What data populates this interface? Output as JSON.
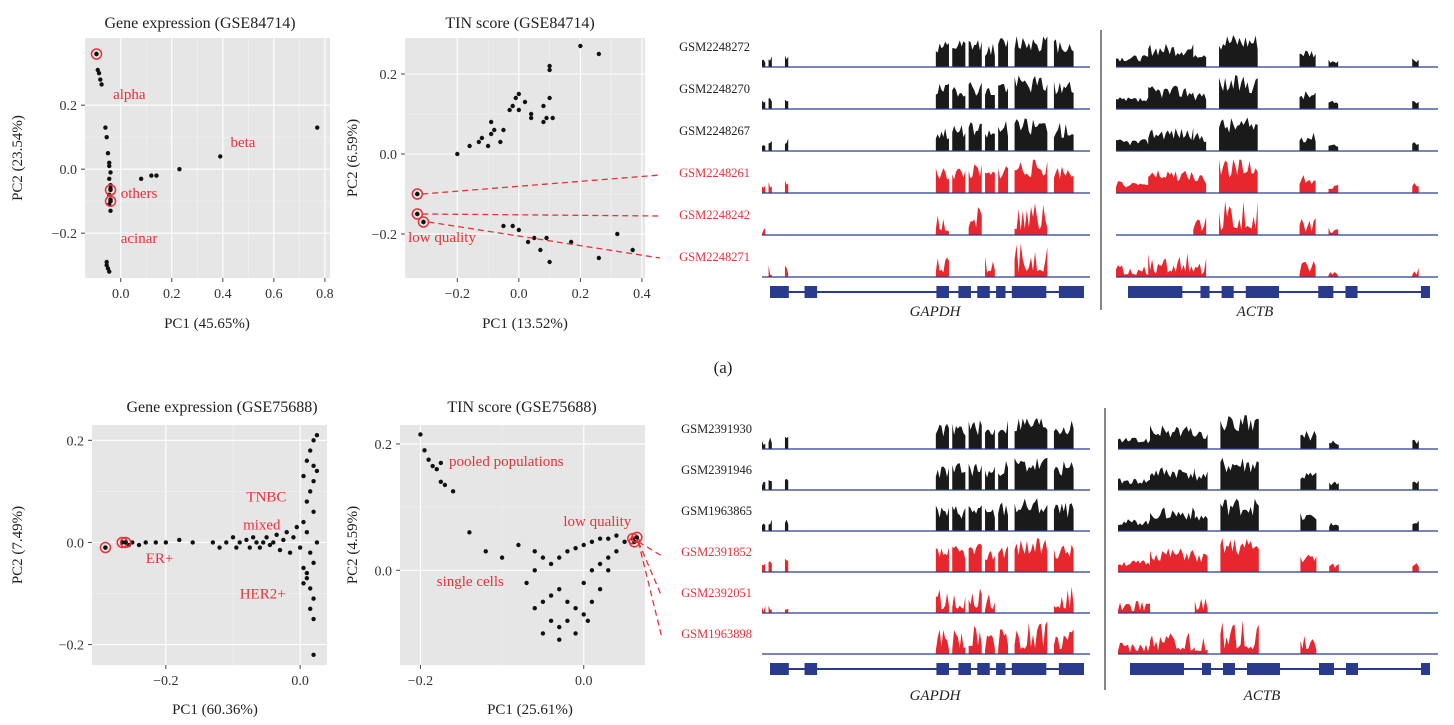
{
  "figure": {
    "panel_label_a": "(a)"
  },
  "colors": {
    "panel_bg": "#e6e6e6",
    "grid": "#ffffff",
    "point": "#111111",
    "highlight": "#e8313a",
    "track_black": "#1a1a1a",
    "track_red": "#e8262e",
    "gene_model": "#2a3a8c"
  },
  "chart_data": [
    {
      "id": "a1",
      "type": "scatter",
      "title": "Gene expression (GSE84714)",
      "xlabel": "PC1 (45.65%)",
      "ylabel": "PC2 (23.54%)",
      "xlim": [
        -0.14,
        0.82
      ],
      "ylim": [
        -0.34,
        0.41
      ],
      "xticks": [
        0.0,
        0.2,
        0.4,
        0.6,
        0.8
      ],
      "xtick_labels": [
        "0.0",
        "0.2",
        "0.4",
        "0.6",
        "0.8"
      ],
      "yticks": [
        -0.2,
        0.0,
        0.2
      ],
      "ytick_labels": [
        "−0.2",
        "0.0",
        "0.2"
      ],
      "annotations": [
        {
          "text": "alpha",
          "x": -0.03,
          "y": 0.22
        },
        {
          "text": "beta",
          "x": 0.43,
          "y": 0.07
        },
        {
          "text": "others",
          "x": 0.0,
          "y": -0.09
        },
        {
          "text": "acinar",
          "x": 0.0,
          "y": -0.23
        }
      ],
      "points": [
        [
          -0.095,
          0.36
        ],
        [
          -0.09,
          0.31
        ],
        [
          -0.085,
          0.3
        ],
        [
          -0.08,
          0.28
        ],
        [
          -0.075,
          0.265
        ],
        [
          -0.06,
          0.13
        ],
        [
          -0.055,
          0.1
        ],
        [
          -0.05,
          0.05
        ],
        [
          -0.045,
          0.02
        ],
        [
          -0.045,
          0.01
        ],
        [
          -0.04,
          -0.01
        ],
        [
          -0.045,
          -0.03
        ],
        [
          -0.04,
          -0.05
        ],
        [
          -0.04,
          -0.06
        ],
        [
          -0.045,
          -0.08
        ],
        [
          -0.04,
          -0.095
        ],
        [
          -0.04,
          -0.1
        ],
        [
          -0.045,
          -0.11
        ],
        [
          -0.04,
          -0.13
        ],
        [
          -0.055,
          -0.29
        ],
        [
          -0.055,
          -0.3
        ],
        [
          -0.05,
          -0.31
        ],
        [
          -0.045,
          -0.32
        ],
        [
          0.08,
          -0.03
        ],
        [
          0.12,
          -0.02
        ],
        [
          0.14,
          -0.02
        ],
        [
          0.23,
          0.0
        ],
        [
          0.39,
          0.04
        ],
        [
          0.77,
          0.13
        ]
      ],
      "highlighted": [
        [
          -0.095,
          0.36
        ],
        [
          -0.04,
          -0.065
        ],
        [
          -0.04,
          -0.1
        ]
      ]
    },
    {
      "id": "a2",
      "type": "scatter",
      "title": "TIN score (GSE84714)",
      "xlabel": "PC1 (13.52%)",
      "ylabel": "PC2 (6.59%)",
      "xlim": [
        -0.37,
        0.41
      ],
      "ylim": [
        -0.31,
        0.29
      ],
      "xticks": [
        -0.2,
        0.0,
        0.2,
        0.4
      ],
      "xtick_labels": [
        "−0.2",
        "0.0",
        "0.2",
        "0.4"
      ],
      "yticks": [
        -0.2,
        0.0,
        0.2
      ],
      "ytick_labels": [
        "−0.2",
        "0.0",
        "0.2"
      ],
      "annotations": [
        {
          "text": "low quality",
          "x": -0.36,
          "y": -0.22
        }
      ],
      "points": [
        [
          -0.2,
          0.0
        ],
        [
          -0.16,
          0.02
        ],
        [
          -0.13,
          0.03
        ],
        [
          -0.12,
          0.04
        ],
        [
          -0.1,
          0.02
        ],
        [
          -0.09,
          0.05
        ],
        [
          -0.09,
          0.08
        ],
        [
          -0.08,
          0.06
        ],
        [
          -0.06,
          0.03
        ],
        [
          -0.05,
          0.06
        ],
        [
          -0.03,
          0.11
        ],
        [
          -0.02,
          0.12
        ],
        [
          -0.01,
          0.14
        ],
        [
          0.0,
          0.15
        ],
        [
          0.0,
          0.11
        ],
        [
          0.02,
          0.13
        ],
        [
          0.04,
          0.1
        ],
        [
          0.04,
          0.09
        ],
        [
          0.08,
          0.12
        ],
        [
          0.08,
          0.08
        ],
        [
          0.09,
          0.09
        ],
        [
          0.1,
          0.21
        ],
        [
          0.1,
          0.22
        ],
        [
          0.1,
          0.14
        ],
        [
          0.11,
          0.09
        ],
        [
          0.2,
          0.27
        ],
        [
          0.26,
          0.25
        ],
        [
          -0.05,
          -0.18
        ],
        [
          -0.02,
          -0.18
        ],
        [
          0.0,
          -0.19
        ],
        [
          0.03,
          -0.22
        ],
        [
          0.05,
          -0.21
        ],
        [
          0.07,
          -0.24
        ],
        [
          0.09,
          -0.21
        ],
        [
          0.1,
          -0.27
        ],
        [
          0.17,
          -0.22
        ],
        [
          0.26,
          -0.26
        ],
        [
          0.32,
          -0.2
        ],
        [
          0.37,
          -0.24
        ],
        [
          -0.33,
          -0.1
        ],
        [
          -0.33,
          -0.15
        ],
        [
          -0.31,
          -0.17
        ]
      ],
      "highlighted": [
        [
          -0.33,
          -0.1
        ],
        [
          -0.33,
          -0.15
        ],
        [
          -0.31,
          -0.17
        ]
      ]
    },
    {
      "id": "b1",
      "type": "scatter",
      "title": "Gene expression (GSE75688)",
      "xlabel": "PC1 (60.36%)",
      "ylabel": "PC2 (7.49%)",
      "xlim": [
        -0.31,
        0.04
      ],
      "ylim": [
        -0.24,
        0.23
      ],
      "xticks": [
        -0.2,
        0.0
      ],
      "xtick_labels": [
        "−0.2",
        "0.0"
      ],
      "yticks": [
        -0.2,
        0.0,
        0.2
      ],
      "ytick_labels": [
        "−0.2",
        "0.0",
        "0.2"
      ],
      "annotations": [
        {
          "text": "TNBC",
          "x": -0.08,
          "y": 0.08
        },
        {
          "text": "mixed",
          "x": -0.085,
          "y": 0.025
        },
        {
          "text": "ER+",
          "x": -0.23,
          "y": -0.04
        },
        {
          "text": "HER2+",
          "x": -0.09,
          "y": -0.11
        }
      ],
      "points": [
        [
          -0.29,
          -0.01
        ],
        [
          -0.265,
          0.0
        ],
        [
          -0.26,
          0.0
        ],
        [
          -0.255,
          -0.005
        ],
        [
          -0.25,
          0.0
        ],
        [
          -0.24,
          -0.005
        ],
        [
          -0.23,
          0.0
        ],
        [
          -0.215,
          0.0
        ],
        [
          -0.2,
          0.0
        ],
        [
          -0.18,
          0.005
        ],
        [
          -0.16,
          0.0
        ],
        [
          -0.13,
          0.0
        ],
        [
          -0.12,
          -0.01
        ],
        [
          -0.11,
          0.0
        ],
        [
          -0.1,
          0.01
        ],
        [
          -0.095,
          -0.01
        ],
        [
          -0.09,
          0.0
        ],
        [
          -0.08,
          0.005
        ],
        [
          -0.075,
          -0.01
        ],
        [
          -0.07,
          0.01
        ],
        [
          -0.065,
          0.0
        ],
        [
          -0.06,
          -0.01
        ],
        [
          -0.055,
          0.0
        ],
        [
          -0.05,
          0.01
        ],
        [
          -0.045,
          -0.005
        ],
        [
          -0.04,
          0.0
        ],
        [
          -0.035,
          0.015
        ],
        [
          -0.03,
          -0.015
        ],
        [
          -0.025,
          0.005
        ],
        [
          -0.02,
          0.02
        ],
        [
          -0.015,
          -0.02
        ],
        [
          -0.01,
          0.01
        ],
        [
          -0.005,
          0.03
        ],
        [
          0.0,
          -0.01
        ],
        [
          0.005,
          0.04
        ],
        [
          0.01,
          0.02
        ],
        [
          0.015,
          -0.02
        ],
        [
          0.02,
          0.06
        ],
        [
          0.025,
          0.0
        ],
        [
          0.005,
          -0.05
        ],
        [
          0.01,
          -0.07
        ],
        [
          0.015,
          -0.09
        ],
        [
          0.02,
          -0.11
        ],
        [
          0.015,
          -0.13
        ],
        [
          0.02,
          -0.15
        ],
        [
          0.01,
          -0.06
        ],
        [
          0.005,
          -0.08
        ],
        [
          0.02,
          -0.04
        ],
        [
          0.01,
          0.08
        ],
        [
          0.015,
          0.1
        ],
        [
          0.02,
          0.12
        ],
        [
          0.01,
          0.16
        ],
        [
          0.015,
          0.18
        ],
        [
          0.02,
          0.2
        ],
        [
          0.025,
          0.21
        ],
        [
          0.02,
          0.15
        ],
        [
          0.025,
          0.14
        ],
        [
          0.005,
          0.13
        ],
        [
          0.02,
          -0.22
        ]
      ],
      "highlighted": [
        [
          -0.29,
          -0.01
        ],
        [
          -0.265,
          0.0
        ],
        [
          -0.26,
          0.0
        ]
      ]
    },
    {
      "id": "b2",
      "type": "scatter",
      "title": "TIN score (GSE75688)",
      "xlabel": "PC1 (25.61%)",
      "ylabel": "PC2 (4.59%)",
      "xlim": [
        -0.225,
        0.075
      ],
      "ylim": [
        -0.15,
        0.23
      ],
      "xticks": [
        -0.2,
        0.0
      ],
      "xtick_labels": [
        "−0.2",
        "0.0"
      ],
      "yticks": [
        0.0,
        0.2
      ],
      "ytick_labels": [
        "0.0",
        "0.2"
      ],
      "annotations": [
        {
          "text": "pooled populations",
          "x": -0.165,
          "y": 0.165
        },
        {
          "text": "low quality",
          "x": -0.025,
          "y": 0.07
        },
        {
          "text": "single cells",
          "x": -0.18,
          "y": -0.025
        }
      ],
      "points": [
        [
          -0.2,
          0.215
        ],
        [
          -0.195,
          0.19
        ],
        [
          -0.19,
          0.175
        ],
        [
          -0.185,
          0.165
        ],
        [
          -0.18,
          0.16
        ],
        [
          -0.175,
          0.17
        ],
        [
          -0.175,
          0.14
        ],
        [
          -0.17,
          0.135
        ],
        [
          -0.16,
          0.125
        ],
        [
          -0.14,
          0.06
        ],
        [
          -0.12,
          0.03
        ],
        [
          -0.1,
          0.02
        ],
        [
          -0.08,
          0.04
        ],
        [
          -0.06,
          0.03
        ],
        [
          -0.05,
          0.02
        ],
        [
          -0.04,
          0.01
        ],
        [
          -0.03,
          0.02
        ],
        [
          -0.02,
          0.03
        ],
        [
          -0.01,
          0.035
        ],
        [
          0.0,
          0.04
        ],
        [
          0.01,
          0.045
        ],
        [
          0.02,
          0.05
        ],
        [
          0.03,
          0.05
        ],
        [
          0.04,
          0.055
        ],
        [
          -0.05,
          -0.05
        ],
        [
          -0.04,
          -0.04
        ],
        [
          -0.03,
          -0.03
        ],
        [
          -0.02,
          -0.05
        ],
        [
          -0.01,
          -0.06
        ],
        [
          0.0,
          -0.07
        ],
        [
          0.01,
          -0.05
        ],
        [
          -0.04,
          -0.08
        ],
        [
          -0.03,
          -0.09
        ],
        [
          -0.02,
          -0.08
        ],
        [
          0.0,
          -0.02
        ],
        [
          0.01,
          0.0
        ],
        [
          0.02,
          0.01
        ],
        [
          0.03,
          0.02
        ],
        [
          -0.05,
          -0.1
        ],
        [
          -0.03,
          -0.11
        ],
        [
          -0.01,
          -0.1
        ],
        [
          0.005,
          -0.08
        ],
        [
          0.02,
          -0.03
        ],
        [
          0.03,
          0.0
        ],
        [
          -0.06,
          -0.06
        ],
        [
          -0.07,
          -0.02
        ],
        [
          -0.06,
          0.0
        ],
        [
          0.04,
          0.03
        ],
        [
          0.05,
          0.045
        ]
      ],
      "highlighted": [
        [
          0.06,
          0.05
        ],
        [
          0.062,
          0.045
        ],
        [
          0.065,
          0.052
        ]
      ]
    }
  ],
  "tracks": {
    "a": {
      "samples": [
        {
          "label": "GSM2248272",
          "color": "black"
        },
        {
          "label": "GSM2248270",
          "color": "black"
        },
        {
          "label": "GSM2248267",
          "color": "black"
        },
        {
          "label": "GSM2248261",
          "color": "red"
        },
        {
          "label": "GSM2248242",
          "color": "red"
        },
        {
          "label": "GSM2248271",
          "color": "red"
        }
      ],
      "genes": [
        "GAPDH",
        "ACTB"
      ]
    },
    "b": {
      "samples": [
        {
          "label": "GSM2391930",
          "color": "black"
        },
        {
          "label": "GSM2391946",
          "color": "black"
        },
        {
          "label": "GSM1963865",
          "color": "black"
        },
        {
          "label": "GSM2391852",
          "color": "red"
        },
        {
          "label": "GSM2392051",
          "color": "red"
        },
        {
          "label": "GSM1963898",
          "color": "red"
        }
      ],
      "genes": [
        "GAPDH",
        "ACTB"
      ]
    }
  }
}
